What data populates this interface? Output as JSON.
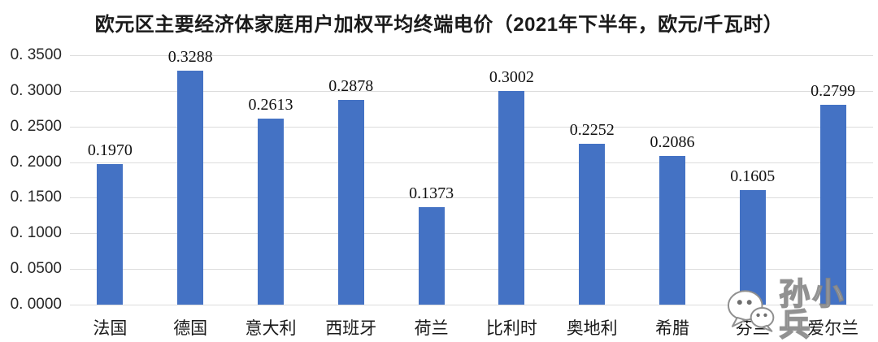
{
  "chart_data": {
    "type": "bar",
    "title": "欧元区主要经济体家庭用户加权平均终端电价（2021年下半年，欧元/千瓦时）",
    "categories": [
      "法国",
      "德国",
      "意大利",
      "西班牙",
      "荷兰",
      "比利时",
      "奥地利",
      "希腊",
      "芬兰",
      "爱尔兰"
    ],
    "values": [
      0.197,
      0.3288,
      0.2613,
      0.2878,
      0.1373,
      0.3002,
      0.2252,
      0.2086,
      0.1605,
      0.2799
    ],
    "value_labels": [
      "0.1970",
      "0.3288",
      "0.2613",
      "0.2878",
      "0.1373",
      "0.3002",
      "0.2252",
      "0.2086",
      "0.1605",
      "0.2799"
    ],
    "xlabel": "",
    "ylabel": "",
    "ylim": [
      0,
      0.35
    ],
    "y_ticks": [
      0.0,
      0.05,
      0.1,
      0.15,
      0.2,
      0.25,
      0.3,
      0.35
    ],
    "y_tick_labels": [
      "0. 0000",
      "0. 0500",
      "0. 1000",
      "0. 1500",
      "0. 2000",
      "0. 2500",
      "0. 3000",
      "0. 3500"
    ],
    "grid": true,
    "legend_position": "none",
    "bar_color": "#4472C4",
    "gridline_color": "#DCDCDC"
  },
  "watermark": {
    "text": "孙小兵",
    "icon": "wechat-icon"
  }
}
